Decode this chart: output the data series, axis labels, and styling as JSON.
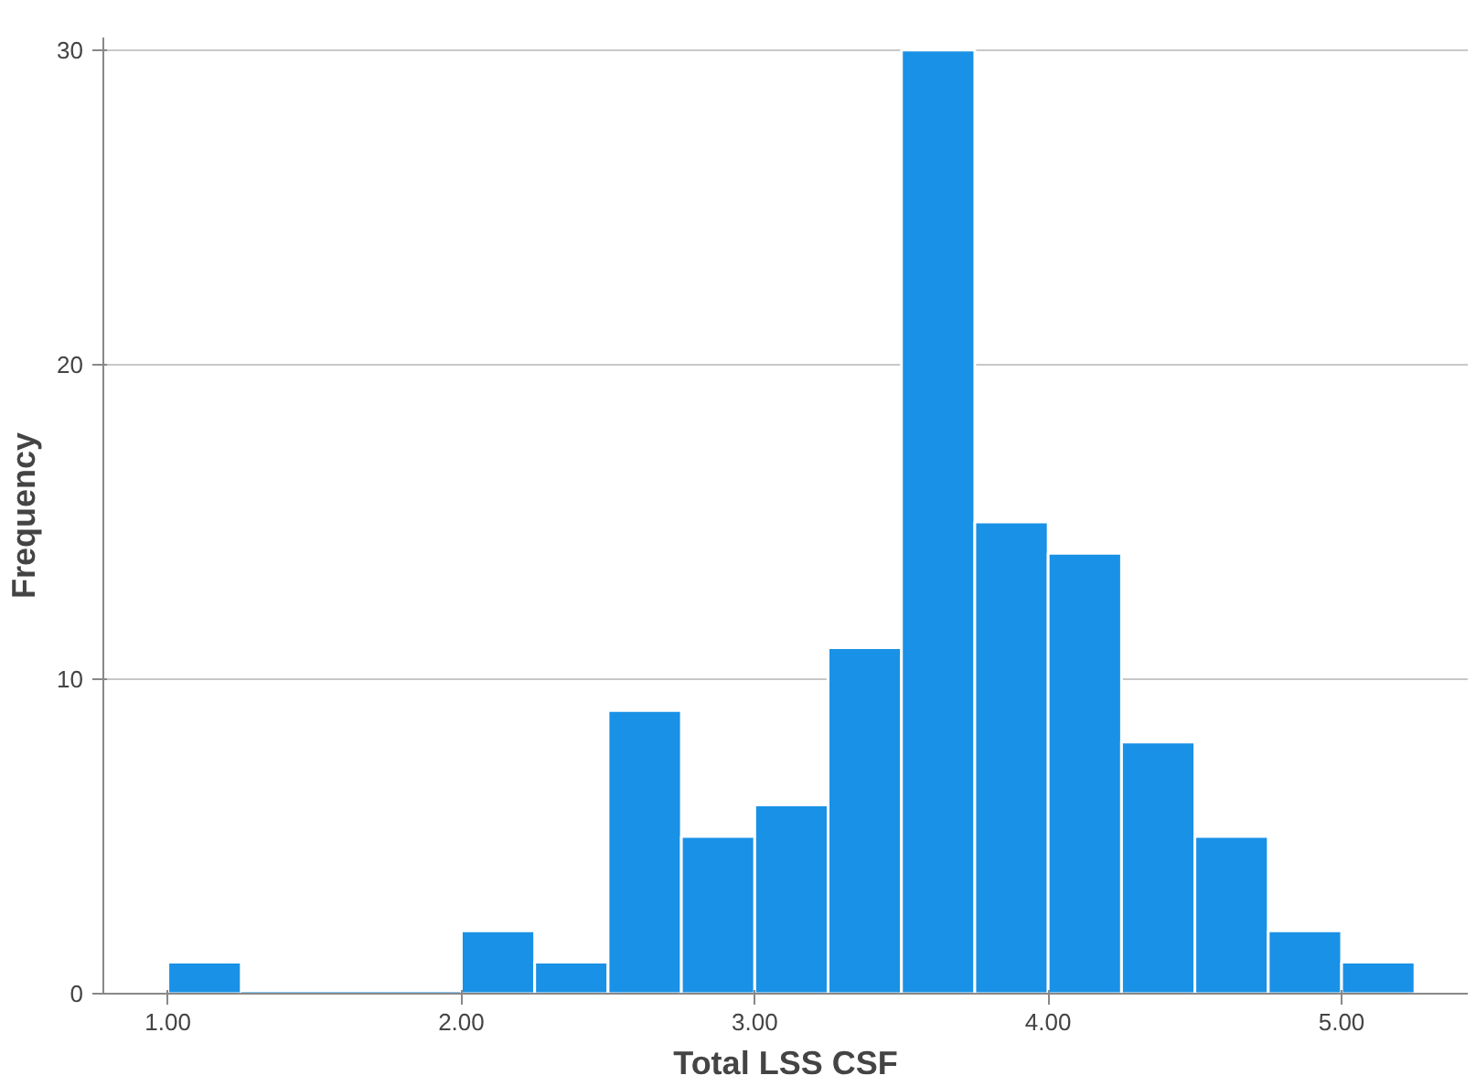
{
  "chart_data": {
    "type": "histogram",
    "xlabel": "Total LSS CSF",
    "ylabel": "Frequency",
    "bins": [
      1.0,
      1.25,
      1.5,
      1.75,
      2.0,
      2.25,
      2.5,
      2.75,
      3.0,
      3.25,
      3.5,
      3.75,
      4.0,
      4.25,
      4.5,
      4.75,
      5.0,
      5.25
    ],
    "values": [
      1,
      0,
      0,
      0,
      2,
      1,
      9,
      5,
      6,
      11,
      30,
      15,
      14,
      8,
      5,
      2,
      1
    ],
    "color": "#1991e6",
    "xlim": [
      0.78,
      5.43
    ],
    "ylim": [
      0,
      30.4
    ],
    "xticks": [
      {
        "value": 1,
        "label": "1.00"
      },
      {
        "value": 2,
        "label": "2.00"
      },
      {
        "value": 3,
        "label": "3.00"
      },
      {
        "value": 4,
        "label": "4.00"
      },
      {
        "value": 5,
        "label": "5.00"
      }
    ],
    "yticks": [
      0,
      10,
      20,
      30
    ],
    "grid": "y"
  }
}
